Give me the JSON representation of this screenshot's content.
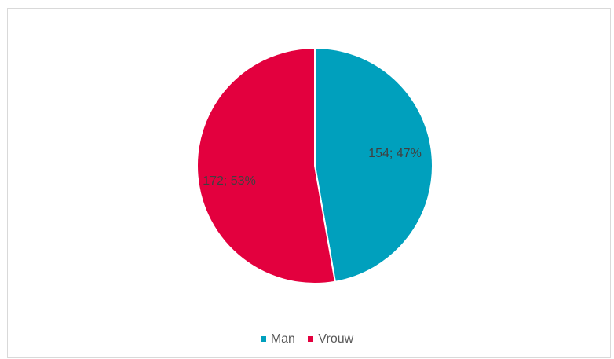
{
  "chart_data": {
    "type": "pie",
    "title": "",
    "slices": [
      {
        "name": "Man",
        "value": 154,
        "percent": 47,
        "label": "154; 47%",
        "color": "#00a0bd"
      },
      {
        "name": "Vrouw",
        "value": 172,
        "percent": 53,
        "label": "172; 53%",
        "color": "#e3003e"
      }
    ],
    "legend": {
      "position": "bottom"
    }
  }
}
